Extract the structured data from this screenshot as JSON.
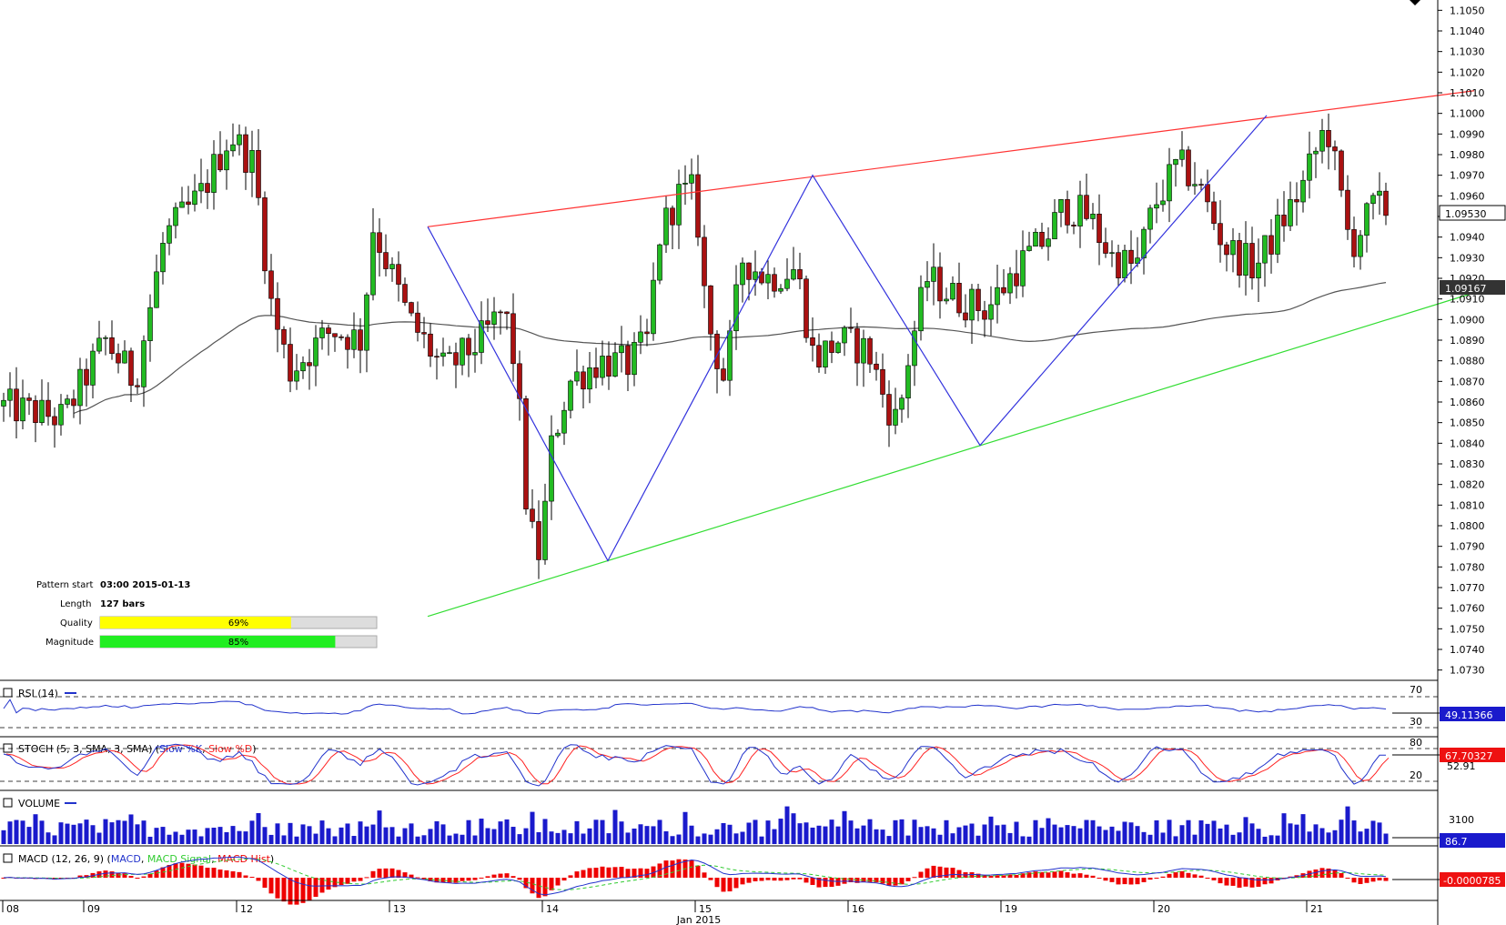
{
  "chart_data": [
    {
      "type": "candlestick",
      "title": "",
      "ylim": [
        1.0725,
        1.1055
      ],
      "y_ticks": [
        "1.1050",
        "1.1040",
        "1.1030",
        "1.1020",
        "1.1010",
        "1.1000",
        "1.0990",
        "1.0980",
        "1.0970",
        "1.0960",
        "1.0950",
        "1.0940",
        "1.0930",
        "1.0920",
        "1.0910",
        "1.0900",
        "1.0890",
        "1.0880",
        "1.0870",
        "1.0860",
        "1.0850",
        "1.0840",
        "1.0830",
        "1.0820",
        "1.0810",
        "1.0800",
        "1.0790",
        "1.0780",
        "1.0770",
        "1.0760",
        "1.0750",
        "1.0740",
        "1.0730"
      ],
      "x_ticks": [
        "08",
        "09",
        "12",
        "13",
        "14",
        "15",
        "16",
        "19",
        "20",
        "21"
      ],
      "x_month_label": "Jan 2015",
      "current_price_label": "1.09530",
      "sma_label": "1.09167",
      "pattern": {
        "name": "Rising Wedge",
        "resistance_line": [
          [
            1.0945,
            1.1011
          ]
        ],
        "support_line": [
          [
            1.0756,
            1.0913
          ]
        ],
        "pivots": [
          1.0945,
          1.0783,
          1.097,
          1.0839,
          1.0999
        ]
      },
      "info": {
        "pattern_start_label": "Pattern start",
        "pattern_start_value": "03:00 2015-01-13",
        "length_label": "Length",
        "length_value": "127 bars",
        "quality_label": "Quality",
        "quality_value": "69%",
        "quality_pct": 69,
        "magnitude_label": "Magnitude",
        "magnitude_value": "85%",
        "magnitude_pct": 85
      }
    },
    {
      "type": "line",
      "name": "RSI",
      "title": "RSI (14)",
      "levels": [
        "70",
        "30"
      ],
      "last_value_label": "49.11366"
    },
    {
      "type": "line",
      "name": "STOCH",
      "title_prefix": "STOCH (5, 3, SMA, 3, SMA) (",
      "series_names": [
        "Slow %K",
        "Slow %D"
      ],
      "levels": [
        "80",
        "20"
      ],
      "last_value_label": "67.70327",
      "second_value_label": "52.91"
    },
    {
      "type": "bar",
      "name": "VOLUME",
      "title": "VOLUME",
      "tick": "3100",
      "last_value_label": "86.7"
    },
    {
      "type": "bar",
      "name": "MACD",
      "title_prefix": "MACD (12, 26, 9) (",
      "series_names": [
        "MACD",
        "MACD Signal",
        "MACD Hist"
      ],
      "last_value_label": "-0.0000785"
    }
  ],
  "colors": {
    "bull": "#22bb22",
    "bear": "#aa1111",
    "resistance": "#ff3333",
    "support": "#33dd33",
    "zigzag": "#3333dd",
    "sma": "#555555",
    "rsi": "#2233cc",
    "stoch_k": "#2233cc",
    "stoch_d": "#ff2222",
    "volume": "#1a1acc",
    "macd": "#2233cc",
    "macd_signal": "#33cc33",
    "macd_hist": "#ee0000",
    "quality_bar": "#ffff00",
    "magnitude_bar": "#22ee22"
  }
}
